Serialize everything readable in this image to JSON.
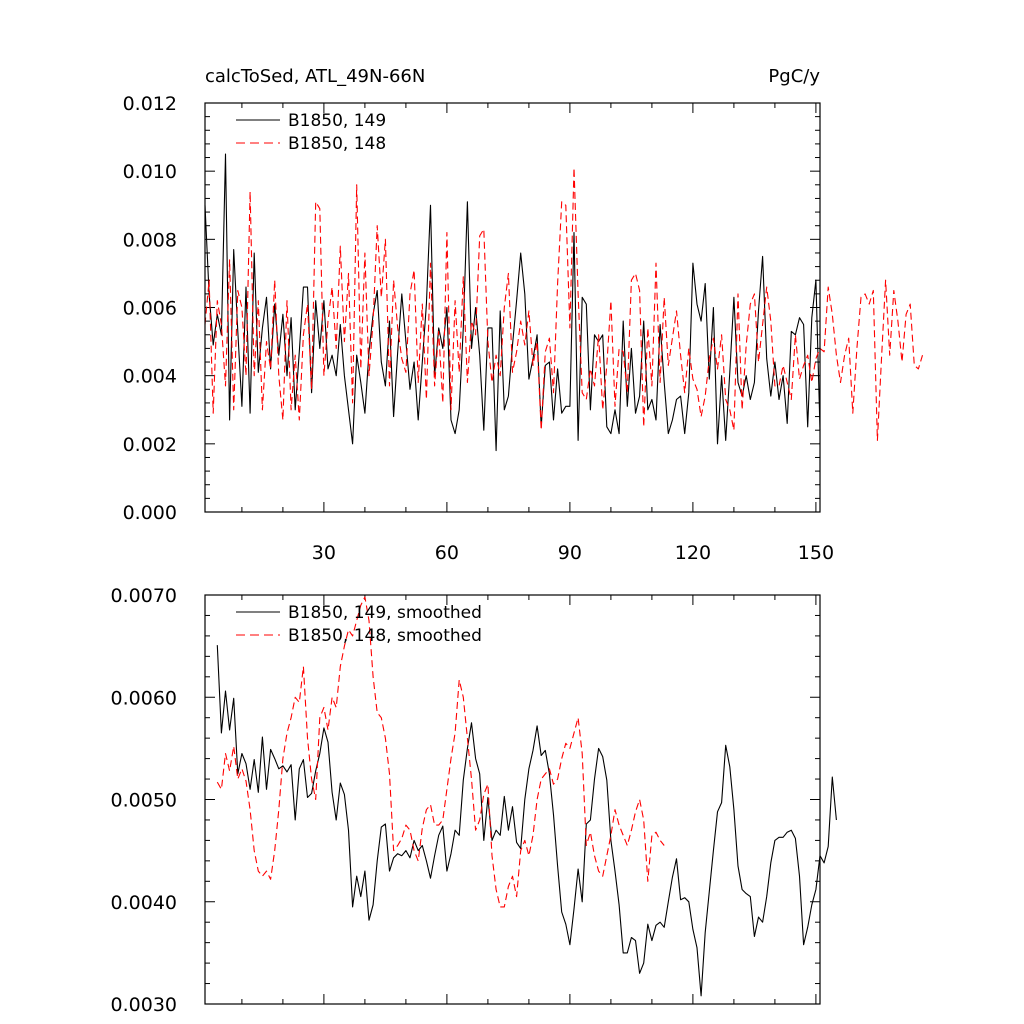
{
  "chart_data": [
    {
      "type": "line",
      "title": "calcToSed, ATL_49N-66N",
      "units": "PgC/y",
      "xlim": [
        1,
        151
      ],
      "ylim": [
        0.0,
        0.012
      ],
      "xticks": [
        30,
        60,
        90,
        120,
        150
      ],
      "xtick_labels": [
        "30",
        "60",
        "90",
        "120",
        "150"
      ],
      "yticks": [
        0.0,
        0.002,
        0.004,
        0.006,
        0.008,
        0.01,
        0.012
      ],
      "ytick_labels": [
        "0.000",
        "0.002",
        "0.004",
        "0.006",
        "0.008",
        "0.010",
        "0.012"
      ],
      "legend": [
        "B1850, 149",
        "B1850, 148"
      ],
      "legend_position": "top-left",
      "series": [
        {
          "name": "B1850, 149",
          "color": "#000000",
          "dash": "solid",
          "x_start": 1,
          "values": [
            0.009,
            0.0064,
            0.0049,
            0.0058,
            0.0052,
            0.0105,
            0.0027,
            0.0077,
            0.0053,
            0.0031,
            0.0066,
            0.0029,
            0.0076,
            0.0041,
            0.0054,
            0.0063,
            0.0042,
            0.0061,
            0.0046,
            0.0058,
            0.004,
            0.0057,
            0.003,
            0.0047,
            0.0066,
            0.0066,
            0.0035,
            0.0062,
            0.0048,
            0.0062,
            0.0042,
            0.0046,
            0.004,
            0.0055,
            0.004,
            0.003,
            0.002,
            0.0046,
            0.0038,
            0.0029,
            0.0047,
            0.0058,
            0.0065,
            0.0044,
            0.0037,
            0.0056,
            0.0028,
            0.0047,
            0.0064,
            0.005,
            0.0036,
            0.0044,
            0.0027,
            0.0044,
            0.0061,
            0.009,
            0.004,
            0.0054,
            0.0048,
            0.006,
            0.0027,
            0.0023,
            0.003,
            0.0054,
            0.0091,
            0.0048,
            0.006,
            0.0046,
            0.0024,
            0.0054,
            0.0054,
            0.0018,
            0.0059,
            0.003,
            0.0034,
            0.0049,
            0.0062,
            0.0076,
            0.0064,
            0.0039,
            0.0045,
            0.0052,
            0.0025,
            0.0043,
            0.0044,
            0.0027,
            0.0042,
            0.0029,
            0.0031,
            0.0031,
            0.0082,
            0.0021,
            0.0063,
            0.0061,
            0.003,
            0.0052,
            0.005,
            0.0052,
            0.0025,
            0.0023,
            0.003,
            0.0023,
            0.0056,
            0.0031,
            0.0048,
            0.0029,
            0.0034,
            0.0056,
            0.003,
            0.0033,
            0.0027,
            0.0055,
            0.0038,
            0.0023,
            0.0027,
            0.0033,
            0.0034,
            0.0023,
            0.0035,
            0.0073,
            0.0061,
            0.0056,
            0.0067,
            0.0039,
            0.006,
            0.002,
            0.004,
            0.0021,
            0.0041,
            0.0063,
            0.0038,
            0.0034,
            0.004,
            0.0033,
            0.0038,
            0.0059,
            0.0075,
            0.0045,
            0.0034,
            0.0044,
            0.0033,
            0.004,
            0.0026,
            0.0053,
            0.0052,
            0.0057,
            0.0055,
            0.0025,
            0.0057,
            0.0068,
            0.0024
          ]
        },
        {
          "name": "B1850, 148",
          "color": "#ff0000",
          "dash": "dashed",
          "x_start": 1,
          "values": [
            0.0055,
            0.0068,
            0.0029,
            0.0062,
            0.0055,
            0.0037,
            0.0074,
            0.003,
            0.0065,
            0.006,
            0.004,
            0.0094,
            0.004,
            0.0062,
            0.003,
            0.005,
            0.0042,
            0.0068,
            0.004,
            0.0027,
            0.0062,
            0.003,
            0.0046,
            0.0027,
            0.0052,
            0.0061,
            0.0036,
            0.0091,
            0.0089,
            0.004,
            0.0056,
            0.0066,
            0.0048,
            0.0078,
            0.005,
            0.007,
            0.0032,
            0.0096,
            0.0042,
            0.0076,
            0.004,
            0.0056,
            0.0084,
            0.0063,
            0.008,
            0.0037,
            0.0068,
            0.0054,
            0.0045,
            0.0041,
            0.0064,
            0.0071,
            0.0038,
            0.0061,
            0.0033,
            0.0073,
            0.0037,
            0.0053,
            0.0032,
            0.0082,
            0.003,
            0.0062,
            0.0041,
            0.0069,
            0.0038,
            0.0056,
            0.0052,
            0.0081,
            0.0083,
            0.005,
            0.0038,
            0.0046,
            0.004,
            0.006,
            0.007,
            0.0041,
            0.0047,
            0.0056,
            0.0049,
            0.0059,
            0.0043,
            0.005,
            0.0024,
            0.0047,
            0.0051,
            0.0035,
            0.0067,
            0.0091,
            0.009,
            0.0054,
            0.0101,
            0.0064,
            0.0035,
            0.0033,
            0.0042,
            0.0037,
            0.0052,
            0.003,
            0.0043,
            0.0062,
            0.0031,
            0.0048,
            0.0047,
            0.0035,
            0.0068,
            0.007,
            0.0065,
            0.0025,
            0.0054,
            0.0037,
            0.0073,
            0.0038,
            0.0063,
            0.0043,
            0.0051,
            0.0059,
            0.0046,
            0.0035,
            0.0048,
            0.0039,
            0.0036,
            0.0028,
            0.0034,
            0.0045,
            0.0051,
            0.0042,
            0.0052,
            0.0033,
            0.003,
            0.0024,
            0.0064,
            0.003,
            0.0049,
            0.0061,
            0.0064,
            0.0044,
            0.0055,
            0.0066,
            0.0056,
            0.0037,
            0.0037,
            0.0043,
            0.0038,
            0.0033,
            0.0052,
            0.0039,
            0.0043,
            0.0046,
            0.0038,
            0.0045,
            0.0048,
            0.0047,
            0.0066,
            0.0058,
            0.0046,
            0.0038,
            0.0046,
            0.0051,
            0.0029,
            0.0048,
            0.0063,
            0.0064,
            0.0061,
            0.0065,
            0.0021,
            0.0045,
            0.0068,
            0.0046,
            0.0065,
            0.0056,
            0.0044,
            0.0058,
            0.0061,
            0.0043,
            0.0042,
            0.0046
          ]
        }
      ]
    },
    {
      "type": "line",
      "xlim": [
        1,
        151
      ],
      "ylim": [
        0.003,
        0.007
      ],
      "xticks": [
        30,
        60,
        90,
        120,
        150
      ],
      "yticks": [
        0.003,
        0.004,
        0.005,
        0.006,
        0.007
      ],
      "ytick_labels": [
        "0.0030",
        "0.0040",
        "0.0050",
        "0.0060",
        "0.0070"
      ],
      "legend": [
        "B1850, 149, smoothed",
        "B1850, 148, smoothed"
      ],
      "legend_position": "top-left",
      "series": [
        {
          "name": "B1850, 149, smoothed",
          "color": "#000000",
          "dash": "solid",
          "x_start": 4,
          "values": [
            0.00651,
            0.00565,
            0.00606,
            0.00568,
            0.00599,
            0.00525,
            0.00545,
            0.00535,
            0.0051,
            0.00539,
            0.00507,
            0.00561,
            0.0051,
            0.00549,
            0.0054,
            0.0053,
            0.00533,
            0.00527,
            0.00534,
            0.0048,
            0.0053,
            0.00539,
            0.00502,
            0.00506,
            0.00528,
            0.00545,
            0.0057,
            0.00556,
            0.00507,
            0.0048,
            0.00516,
            0.00505,
            0.0047,
            0.00395,
            0.00425,
            0.00405,
            0.0043,
            0.00382,
            0.00397,
            0.0044,
            0.00473,
            0.00476,
            0.0043,
            0.00443,
            0.00447,
            0.00445,
            0.0045,
            0.00443,
            0.0046,
            0.0045,
            0.00455,
            0.0044,
            0.00423,
            0.00445,
            0.00465,
            0.00474,
            0.0043,
            0.00447,
            0.0047,
            0.00465,
            0.00519,
            0.0055,
            0.00575,
            0.0054,
            0.00525,
            0.0046,
            0.00502,
            0.0046,
            0.0047,
            0.00465,
            0.00503,
            0.0047,
            0.00493,
            0.00458,
            0.00452,
            0.005,
            0.0053,
            0.00548,
            0.00572,
            0.00543,
            0.00548,
            0.00525,
            0.00485,
            0.00435,
            0.0039,
            0.00378,
            0.00358,
            0.00393,
            0.00432,
            0.004,
            0.00476,
            0.0048,
            0.0052,
            0.0055,
            0.00542,
            0.00519,
            0.0046,
            0.0043,
            0.00397,
            0.0035,
            0.0035,
            0.00365,
            0.00362,
            0.0033,
            0.0034,
            0.00378,
            0.00362,
            0.00377,
            0.0038,
            0.00375,
            0.004,
            0.00424,
            0.00442,
            0.00402,
            0.00404,
            0.004,
            0.00373,
            0.00355,
            0.00308,
            0.0037,
            0.0041,
            0.0045,
            0.00488,
            0.00497,
            0.00553,
            0.00532,
            0.0049,
            0.00435,
            0.00412,
            0.00408,
            0.00405,
            0.00366,
            0.00385,
            0.0038,
            0.00405,
            0.00438,
            0.0046,
            0.00463,
            0.00463,
            0.00468,
            0.0047,
            0.00462,
            0.00425,
            0.00358,
            0.00375,
            0.00397,
            0.00412,
            0.00445,
            0.00438,
            0.00454,
            0.00522,
            0.0048
          ]
        },
        {
          "name": "B1850, 148, smoothed",
          "color": "#ff0000",
          "dash": "dashed",
          "x_start": 4,
          "values": [
            0.00517,
            0.0051,
            0.00545,
            0.00528,
            0.00552,
            0.0052,
            0.0053,
            0.00518,
            0.0049,
            0.0045,
            0.0043,
            0.00425,
            0.0043,
            0.00422,
            0.0045,
            0.0049,
            0.0054,
            0.00565,
            0.0058,
            0.006,
            0.00595,
            0.0063,
            0.0056,
            0.0052,
            0.005,
            0.0058,
            0.0059,
            0.00568,
            0.006,
            0.0059,
            0.0063,
            0.0065,
            0.00666,
            0.0066,
            0.00675,
            0.0069,
            0.00698,
            0.00675,
            0.0062,
            0.00585,
            0.0058,
            0.0056,
            0.00525,
            0.0045,
            0.00455,
            0.00462,
            0.00475,
            0.0047,
            0.0045,
            0.0044,
            0.00472,
            0.0049,
            0.00495,
            0.00475,
            0.00475,
            0.0048,
            0.0051,
            0.0054,
            0.00565,
            0.00617,
            0.006,
            0.0056,
            0.0052,
            0.0047,
            0.0048,
            0.00505,
            0.00515,
            0.00445,
            0.00412,
            0.00395,
            0.00395,
            0.00415,
            0.00425,
            0.00405,
            0.0045,
            0.0046,
            0.00445,
            0.00465,
            0.005,
            0.0052,
            0.00525,
            0.0053,
            0.00515,
            0.0052,
            0.0054,
            0.00555,
            0.0055,
            0.00565,
            0.0058,
            0.00545,
            0.00455,
            0.00468,
            0.00445,
            0.0043,
            0.00425,
            0.00445,
            0.00465,
            0.0049,
            0.00475,
            0.00465,
            0.00455,
            0.0047,
            0.00488,
            0.005,
            0.0048,
            0.0042,
            0.00465,
            0.00468,
            0.0046,
            0.00455
          ]
        }
      ]
    }
  ]
}
